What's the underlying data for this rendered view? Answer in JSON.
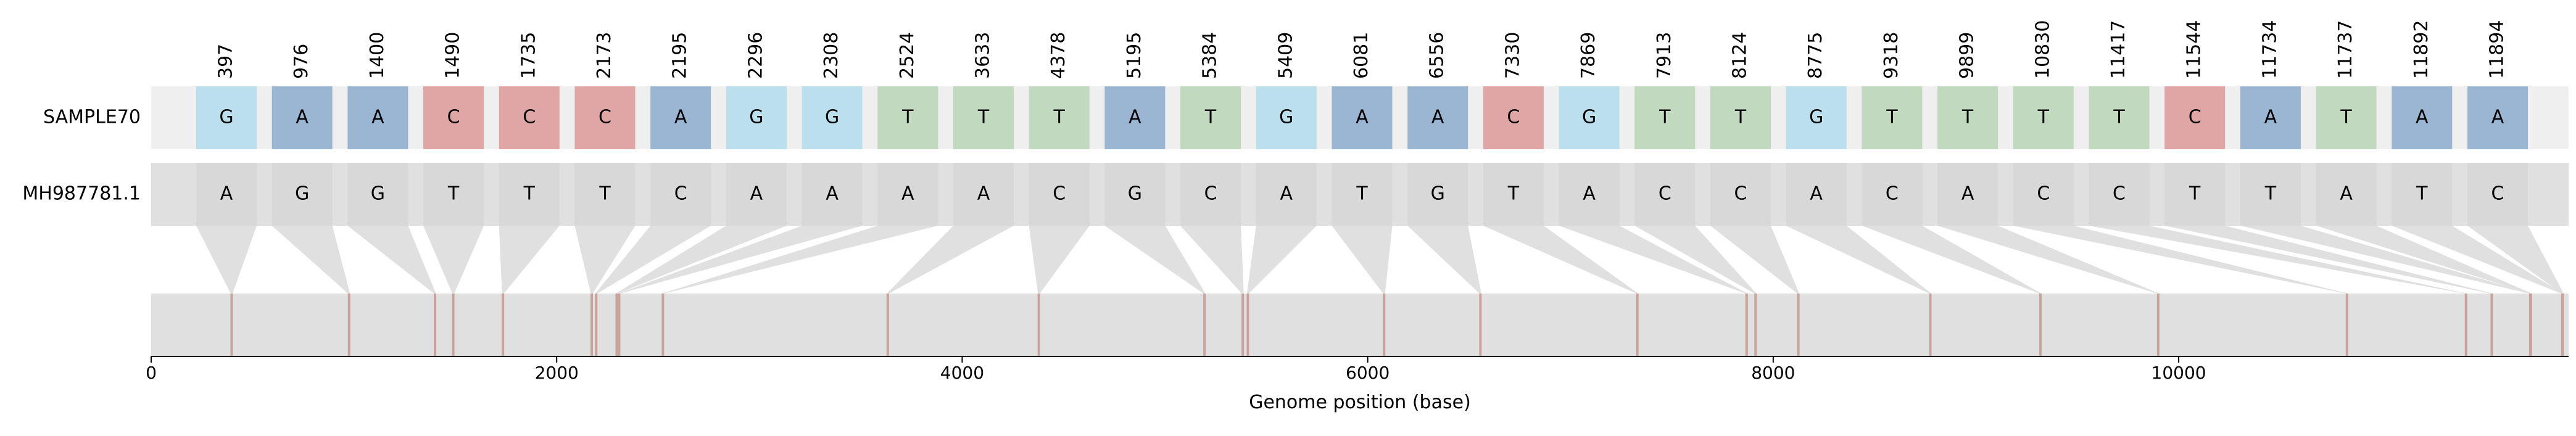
{
  "chart_data": {
    "type": "snp-alignment",
    "xlabel": "Genome position (base)",
    "xlim": [
      0,
      11923
    ],
    "x_ticks": [
      0,
      2000,
      4000,
      6000,
      8000,
      10000
    ],
    "x_tick_labels": [
      "0",
      "2000",
      "4000",
      "6000",
      "8000",
      "10000"
    ],
    "sample_label": "SAMPLE70",
    "reference_label": "MH987781.1",
    "positions": [
      397,
      976,
      1400,
      1490,
      1735,
      2173,
      2195,
      2296,
      2308,
      2524,
      3633,
      4378,
      5195,
      5384,
      5409,
      6081,
      6556,
      7330,
      7869,
      7913,
      8124,
      8775,
      9318,
      9899,
      10830,
      11417,
      11544,
      11734,
      11737,
      11892,
      11894
    ],
    "position_labels": [
      "397",
      "976",
      "1400",
      "1490",
      "1735",
      "2173",
      "2195",
      "2296",
      "2308",
      "2524",
      "3633",
      "4378",
      "5195",
      "5384",
      "5409",
      "6081",
      "6556",
      "7330",
      "7869",
      "7913",
      "8124",
      "8775",
      "9318",
      "9899",
      "10830",
      "11417",
      "11544",
      "11734",
      "11737",
      "11892",
      "11894"
    ],
    "sample_bases": [
      "G",
      "A",
      "A",
      "C",
      "C",
      "C",
      "A",
      "G",
      "G",
      "T",
      "T",
      "T",
      "A",
      "T",
      "G",
      "A",
      "A",
      "C",
      "G",
      "T",
      "T",
      "G",
      "T",
      "T",
      "T",
      "T",
      "C",
      "A",
      "T",
      "A",
      "A"
    ],
    "reference_bases": [
      "A",
      "G",
      "G",
      "T",
      "T",
      "T",
      "C",
      "A",
      "A",
      "A",
      "A",
      "C",
      "G",
      "C",
      "A",
      "T",
      "G",
      "T",
      "A",
      "C",
      "C",
      "A",
      "C",
      "A",
      "C",
      "C",
      "T",
      "T",
      "A",
      "T",
      "C"
    ],
    "base_colors": {
      "A": "#9bb6d3",
      "C": "#e0a5a5",
      "G": "#bbdfec",
      "T": "#c0d9bf"
    },
    "reference_cell_color": "#d8d8d8",
    "track_color": "#e0e0e0",
    "sample_track_color": "#efefef",
    "variant_line_color": "#c9a39b"
  }
}
